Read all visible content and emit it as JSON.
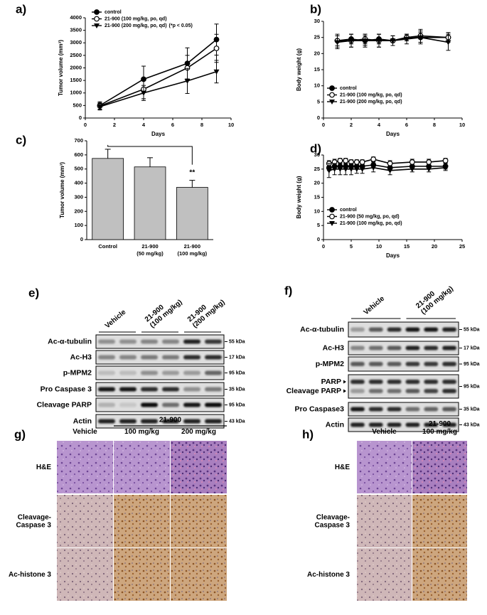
{
  "chart_data": [
    {
      "type": "line",
      "panel": "a)",
      "x_label": "Days",
      "y_label": "Tumor volume (mm³)",
      "xlim": [
        0,
        10
      ],
      "xticks": [
        0,
        2,
        4,
        6,
        8,
        10
      ],
      "ylim": [
        0,
        4000
      ],
      "yticks": [
        0,
        500,
        1000,
        1500,
        2000,
        2500,
        3000,
        3500,
        4000
      ],
      "x": [
        1,
        4,
        7,
        9
      ],
      "legend": "upper left",
      "annotation": "(*p < 0.05)",
      "annotation_color": "#2233cc",
      "series": [
        {
          "name": "control",
          "marker": "circle-filled",
          "color": "#000000",
          "values": [
            500,
            1550,
            2180,
            3130
          ],
          "errors": [
            150,
            520,
            620,
            620
          ]
        },
        {
          "name": "21-900 (100 mg/kg, po, qd)",
          "marker": "circle-open",
          "color": "#000000",
          "values": [
            480,
            1150,
            2000,
            2780
          ],
          "errors": [
            130,
            380,
            500,
            560
          ]
        },
        {
          "name": "21-900 (200 mg/kg, po, qd)",
          "marker": "triangle-down",
          "color": "#000000",
          "values": [
            450,
            1000,
            1480,
            1850
          ],
          "errors": [
            130,
            300,
            500,
            450
          ]
        }
      ]
    },
    {
      "type": "line",
      "panel": "b)",
      "x_label": "Days",
      "y_label": "Body weight (g)",
      "xlim": [
        0,
        10
      ],
      "xticks": [
        0,
        2,
        4,
        6,
        8,
        10
      ],
      "ylim": [
        0,
        30
      ],
      "yticks": [
        0,
        5,
        10,
        15,
        20,
        25,
        30
      ],
      "x": [
        1,
        2,
        3,
        4,
        5,
        6,
        7,
        9
      ],
      "legend": "lower left",
      "series": [
        {
          "name": "control",
          "marker": "circle-filled",
          "color": "#000000",
          "values": [
            24,
            24.5,
            24,
            24.5,
            24,
            25,
            25,
            25
          ],
          "errors": [
            1.5,
            1.5,
            1.5,
            1.5,
            1.5,
            1,
            1.5,
            1.5
          ]
        },
        {
          "name": "21-900 (100 mg/kg, po, qd)",
          "marker": "circle-open",
          "color": "#000000",
          "values": [
            24,
            24,
            24.5,
            24,
            24,
            25,
            25.5,
            25
          ],
          "errors": [
            2,
            2,
            1.5,
            2,
            1.5,
            1,
            2,
            1.5
          ]
        },
        {
          "name": "21-900 (200 mg/kg, po, qd)",
          "marker": "triangle-down",
          "color": "#000000",
          "values": [
            23.5,
            24,
            24,
            24,
            24,
            24.5,
            25,
            23.5
          ],
          "errors": [
            2,
            2,
            2,
            2,
            1.5,
            1.5,
            2,
            2.5
          ]
        }
      ]
    },
    {
      "type": "bar",
      "panel": "c)",
      "y_label": "Tumor volume (mm³)",
      "ylim": [
        0,
        700
      ],
      "yticks": [
        0,
        100,
        200,
        300,
        400,
        500,
        600,
        700
      ],
      "categories": [
        "Control",
        "21-900\n(50 mg/kg)",
        "21-900\n(100 mg/kg)"
      ],
      "values": [
        575,
        515,
        370
      ],
      "errors": [
        65,
        65,
        50
      ],
      "color": "#c0c0c0",
      "annotation": "**"
    },
    {
      "type": "line",
      "panel": "d)",
      "x_label": "Days",
      "y_label": "Body weight (g)",
      "xlim": [
        0,
        25
      ],
      "xticks": [
        0,
        5,
        10,
        15,
        20,
        25
      ],
      "ylim": [
        0,
        30
      ],
      "yticks": [
        0,
        5,
        10,
        15,
        20,
        25,
        30
      ],
      "x": [
        1,
        2,
        3,
        4,
        5,
        6,
        7,
        9,
        12,
        16,
        19,
        22
      ],
      "legend": "lower left",
      "series": [
        {
          "name": "control",
          "marker": "circle-filled",
          "color": "#000000",
          "values": [
            25.5,
            26,
            26,
            26,
            26,
            26,
            26,
            26.5,
            25.5,
            26,
            26,
            26
          ],
          "errors": [
            1,
            1,
            1,
            1,
            1,
            1,
            1,
            1,
            1,
            1,
            1,
            1
          ]
        },
        {
          "name": "21-900 (50 mg/kg, po, qd)",
          "marker": "circle-open",
          "color": "#000000",
          "values": [
            27,
            27.5,
            28,
            28,
            27.5,
            27.5,
            27.5,
            28.5,
            27,
            27.5,
            27.5,
            28
          ],
          "errors": [
            1,
            1,
            0.8,
            0.8,
            0.8,
            0.8,
            0.8,
            0.8,
            1,
            1,
            1,
            0.8
          ]
        },
        {
          "name": "21-900 (100 mg/kg, po, qd)",
          "marker": "triangle-down",
          "color": "#000000",
          "values": [
            24.5,
            25,
            25,
            25,
            25,
            25,
            25,
            25.5,
            24.5,
            25,
            25,
            25.5
          ],
          "errors": [
            2.5,
            2,
            2,
            2,
            2,
            1.5,
            1.5,
            1.5,
            1.5,
            1,
            1,
            1
          ]
        }
      ]
    }
  ],
  "western_blots": [
    {
      "panel": "e)",
      "groups": [
        "Vehicle",
        "21-900\n(100 mg/kg)",
        "21-900\n(200 mg/kg)"
      ],
      "rows": [
        {
          "labels": [
            "Ac-α-tubulin"
          ],
          "size": "55 kDa"
        },
        {
          "labels": [
            "Ac-H3"
          ],
          "size": "17 kDa"
        },
        {
          "labels": [
            "p-MPM2"
          ],
          "size": "95 kDa"
        },
        {
          "labels": [
            "Pro Caspase 3"
          ],
          "size": "35 kDa"
        },
        {
          "labels": [
            "Cleavage PARP"
          ],
          "size": "95 kDa"
        },
        {
          "labels": [
            "Actin"
          ],
          "size": "43 kDa"
        }
      ]
    },
    {
      "panel": "f)",
      "groups": [
        "Vehicle",
        "21-900\n(100 mg/kg)"
      ],
      "rows": [
        {
          "labels": [
            "Ac-α-tubulin"
          ],
          "size": "55 kDa"
        },
        {
          "labels": [
            "Ac-H3"
          ],
          "size": "17 kDa"
        },
        {
          "labels": [
            "p-MPM2"
          ],
          "size": "95 kDa"
        },
        {
          "labels": [
            "PARP",
            "Cleavage PARP"
          ],
          "size": "95 kDa"
        },
        {
          "labels": [
            "Pro Caspase3"
          ],
          "size": "35 kDa"
        },
        {
          "labels": [
            "Actin"
          ],
          "size": "43 kDa"
        }
      ]
    }
  ],
  "histology": [
    {
      "panel": "g)",
      "span_label": "21-900",
      "columns": [
        "Vehicle",
        "100 mg/kg",
        "200 mg/kg"
      ],
      "rows": [
        "H&E",
        "Cleavage-\nCaspase 3",
        "Ac-histone 3"
      ]
    },
    {
      "panel": "h)",
      "columns": [
        "Vehicle",
        "21-900\n100 mg/kg"
      ],
      "rows": [
        "H&E",
        "Cleavage-\nCaspase 3",
        "Ac-histone 3"
      ]
    }
  ]
}
